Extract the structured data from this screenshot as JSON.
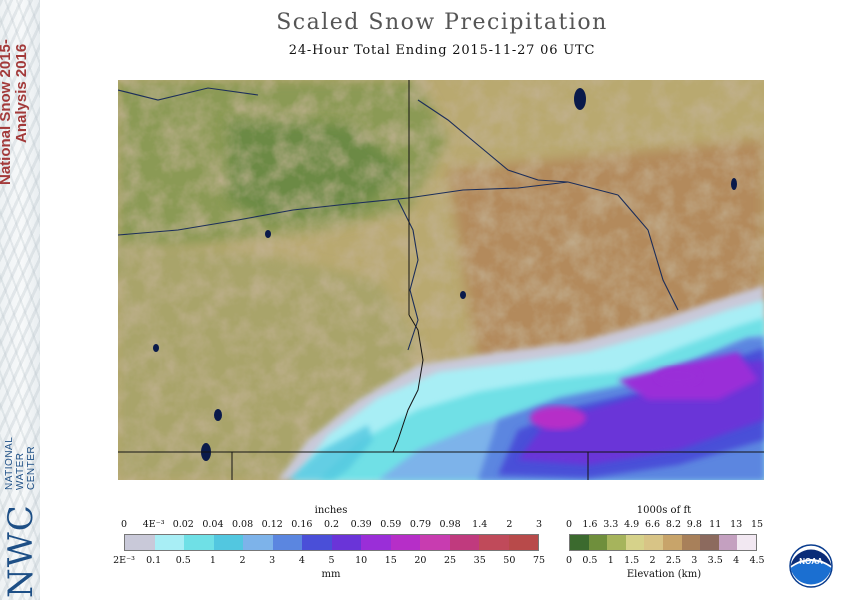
{
  "banner": {
    "title_line1": "National Snow 2015-",
    "title_line2": "Analysis 2016",
    "logo_letters": "NWC",
    "logo_name": [
      "NATIONAL",
      "WATER",
      "CENTER"
    ]
  },
  "header": {
    "title": "Scaled Snow Precipitation",
    "subtitle": "24-Hour Total Ending 2015-11-27 06 UTC"
  },
  "precip_legend": {
    "title_top": "inches",
    "inches_ticks": [
      "0",
      "4E⁻³",
      "0.02",
      "0.04",
      "0.08",
      "0.12",
      "0.16",
      "0.2",
      "0.39",
      "0.59",
      "0.79",
      "0.98",
      "1.4",
      "2",
      "3"
    ],
    "mm_ticks": [
      "2E⁻³",
      "0.1",
      "0.5",
      "1",
      "2",
      "3",
      "4",
      "5",
      "10",
      "15",
      "20",
      "25",
      "35",
      "50",
      "75"
    ],
    "title_bottom": "mm",
    "colors": [
      "#c9c9d9",
      "#a8eef5",
      "#6fe0e6",
      "#52c7e0",
      "#7db3ea",
      "#5b86e0",
      "#4a4fd8",
      "#6a34d8",
      "#9a2ed8",
      "#b62ec8",
      "#c83cb0",
      "#c03a7e",
      "#c04a5a",
      "#b84a4a"
    ]
  },
  "elevation_legend": {
    "title_top": "1000s of ft",
    "ft_ticks": [
      "0",
      "1.6",
      "3.3",
      "4.9",
      "6.6",
      "8.2",
      "9.8",
      "11",
      "13",
      "15"
    ],
    "km_ticks": [
      "0",
      "0.5",
      "1",
      "1.5",
      "2",
      "2.5",
      "3",
      "3.5",
      "4",
      "4.5"
    ],
    "title_bottom": "Elevation (km)",
    "colors": [
      "#3b6a2e",
      "#6f8f3c",
      "#a6b45c",
      "#d6d28a",
      "#d8c486",
      "#c8a46a",
      "#a8805a",
      "#8c6a5e",
      "#c4a0c0",
      "#f2e8f2"
    ]
  },
  "logo": {
    "noaa_text": "NOAA"
  }
}
